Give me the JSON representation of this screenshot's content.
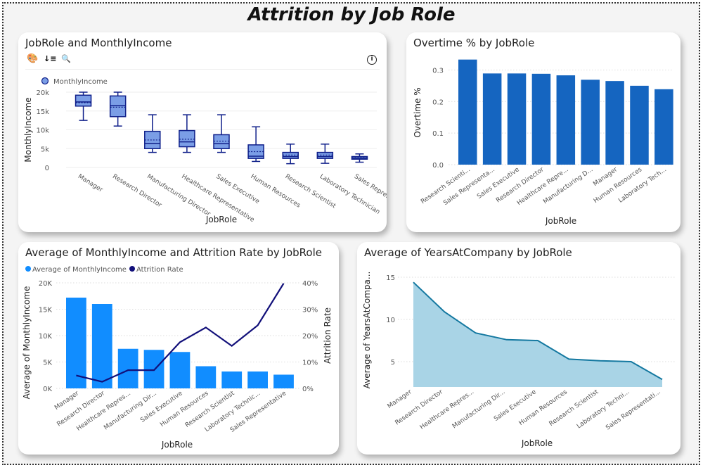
{
  "page": {
    "title": "Attrition by Job Role"
  },
  "toolbar": {
    "icons": [
      "palette-icon",
      "sort-descending-icon",
      "zoom-out-icon",
      "info-icon"
    ],
    "palette_glyph": "🎨",
    "sort_glyph": "↓≡",
    "zoom_glyph": "🔍",
    "info_glyph": "i"
  },
  "colors": {
    "box_fill": "#7b9ee6",
    "box_stroke": "#10208a",
    "overtime_bar": "#1565c0",
    "income_bar": "#118dff",
    "attrition_line": "#12107a",
    "area_fill": "#a9d4e6",
    "area_line": "#1478a0"
  },
  "chart_data": [
    {
      "id": "boxplot",
      "type": "box",
      "title": "JobRole and MonthlyIncome",
      "legend": [
        "MonthlyIncome"
      ],
      "xlabel": "JobRole",
      "ylabel": "MonthlyIncome",
      "ylim": [
        0,
        20000
      ],
      "yticks": [
        0,
        5000,
        10000,
        15000,
        20000
      ],
      "ytick_labels": [
        "0",
        "5k",
        "10k",
        "15k",
        "20k"
      ],
      "categories": [
        "Manager",
        "Research Director",
        "Manufacturing Director",
        "Healthcare Representative",
        "Sales Executive",
        "Human Resources",
        "Research Scientist",
        "Laboratory Technician",
        "Sales Representative"
      ],
      "boxes": [
        {
          "min": 12500,
          "q1": 16300,
          "median": 17400,
          "mean": 17200,
          "q3": 19200,
          "max": 20000
        },
        {
          "min": 11000,
          "q1": 13500,
          "median": 16400,
          "mean": 16000,
          "q3": 19000,
          "max": 20000
        },
        {
          "min": 4000,
          "q1": 5000,
          "median": 6400,
          "mean": 7300,
          "q3": 9600,
          "max": 14000
        },
        {
          "min": 4000,
          "q1": 5500,
          "median": 6800,
          "mean": 7500,
          "q3": 9800,
          "max": 14000
        },
        {
          "min": 4000,
          "q1": 5000,
          "median": 6300,
          "mean": 7000,
          "q3": 8700,
          "max": 14000
        },
        {
          "min": 1600,
          "q1": 2400,
          "median": 3000,
          "mean": 4200,
          "q3": 6000,
          "max": 10800
        },
        {
          "min": 1000,
          "q1": 2400,
          "median": 2900,
          "mean": 3300,
          "q3": 4000,
          "max": 6200
        },
        {
          "min": 1100,
          "q1": 2400,
          "median": 2900,
          "mean": 3300,
          "q3": 4000,
          "max": 6200
        },
        {
          "min": 1400,
          "q1": 2200,
          "median": 2500,
          "mean": 2600,
          "q3": 2900,
          "max": 3600
        }
      ]
    },
    {
      "id": "overtime",
      "type": "bar",
      "title": "Overtime % by JobRole",
      "xlabel": "JobRole",
      "ylabel": "Overtime %",
      "ylim": [
        0,
        0.33
      ],
      "yticks": [
        0,
        0.1,
        0.2,
        0.3
      ],
      "ytick_labels": [
        "0.0",
        "0.1",
        "0.2",
        "0.3"
      ],
      "categories": [
        "Research Scienti...",
        "Sales Representa...",
        "Sales Executive",
        "Research Director",
        "Healthcare Repre...",
        "Manufacturing D...",
        "Manager",
        "Human Resources",
        "Laboratory Tech..."
      ],
      "values": [
        0.333,
        0.289,
        0.289,
        0.288,
        0.283,
        0.269,
        0.265,
        0.25,
        0.239
      ]
    },
    {
      "id": "combo",
      "type": "bar",
      "title": "Average of MonthlyIncome and Attrition Rate by JobRole",
      "xlabel": "JobRole",
      "ylabel": "Average of MonthlyIncome",
      "y2label": "Attrition Rate",
      "legend": [
        "Average of MonthlyIncome",
        "Attrition Rate"
      ],
      "ylim": [
        0,
        20000
      ],
      "y2lim": [
        0,
        0.4
      ],
      "yticks": [
        0,
        5000,
        10000,
        15000,
        20000
      ],
      "ytick_labels": [
        "0K",
        "5K",
        "10K",
        "15K",
        "20K"
      ],
      "y2ticks": [
        0,
        0.1,
        0.2,
        0.3,
        0.4
      ],
      "y2tick_labels": [
        "0%",
        "10%",
        "20%",
        "30%",
        "40%"
      ],
      "categories": [
        "Manager",
        "Research Director",
        "Healthcare Repres...",
        "Manufacturing Dir...",
        "Sales Executive",
        "Human Resources",
        "Research Scientist",
        "Laboratory Technic...",
        "Sales Representative"
      ],
      "series": [
        {
          "name": "Average of MonthlyIncome",
          "type": "bar",
          "values": [
            17200,
            16000,
            7500,
            7300,
            6900,
            4200,
            3200,
            3200,
            2600
          ]
        },
        {
          "name": "Attrition Rate",
          "type": "line",
          "values": [
            0.049,
            0.025,
            0.069,
            0.069,
            0.175,
            0.231,
            0.161,
            0.239,
            0.398
          ]
        }
      ]
    },
    {
      "id": "area",
      "type": "area",
      "title": "Average of YearsAtCompany by JobRole",
      "xlabel": "JobRole",
      "ylabel": "Average of YearsAtCompa...",
      "ylim": [
        2,
        15.5
      ],
      "yticks": [
        5,
        10,
        15
      ],
      "ytick_labels": [
        "5",
        "10",
        "15"
      ],
      "categories": [
        "Manager",
        "Research Director",
        "Healthcare Repres...",
        "Manufacturing Dir...",
        "Sales Executive",
        "Human Resources",
        "Research Scientist",
        "Laboratory Techni...",
        "Sales Representati..."
      ],
      "values": [
        14.4,
        10.9,
        8.4,
        7.6,
        7.5,
        5.3,
        5.1,
        5.0,
        2.9
      ]
    }
  ]
}
